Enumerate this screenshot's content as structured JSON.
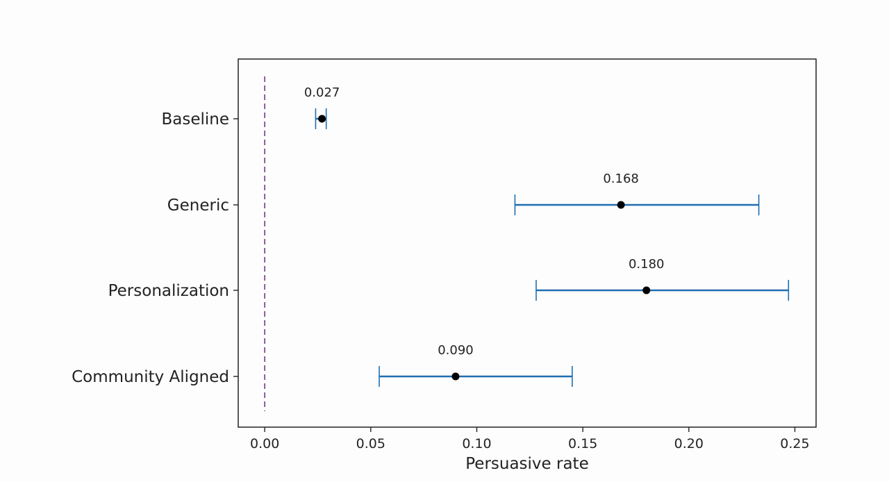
{
  "chart_data": {
    "type": "scatter",
    "orientation": "horizontal",
    "title": "",
    "xlabel": "Persuasive rate",
    "ylabel": "",
    "xlim": [
      -0.0125,
      0.26
    ],
    "xticks": [
      0.0,
      0.05,
      0.1,
      0.15,
      0.2,
      0.25
    ],
    "xtick_labels": [
      "0.00",
      "0.05",
      "0.10",
      "0.15",
      "0.20",
      "0.25"
    ],
    "grid": false,
    "legend": "none",
    "reference_line": {
      "x": 0.0,
      "style": "dashed",
      "color": "#6a3d8a"
    },
    "categories": [
      "Baseline",
      "Generic",
      "Personalization",
      "Community Aligned"
    ],
    "values": [
      0.027,
      0.168,
      0.18,
      0.09
    ],
    "value_labels": [
      "0.027",
      "0.168",
      "0.180",
      "0.090"
    ],
    "ci_lower": [
      0.024,
      0.118,
      0.128,
      0.054
    ],
    "ci_upper": [
      0.029,
      0.233,
      0.247,
      0.145
    ],
    "colors": {
      "point": "#000000",
      "errorbar": "#1f6eb0",
      "axes": "#222222"
    }
  }
}
